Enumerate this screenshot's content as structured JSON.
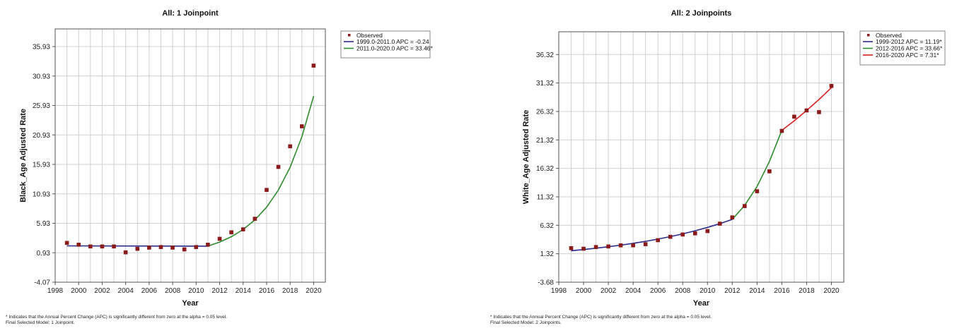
{
  "chart_data": [
    {
      "type": "line",
      "title": "All: 1 Joinpoint",
      "xlabel": "Year",
      "ylabel": "Black_Age Adjusted Rate",
      "xlim": [
        1998,
        2021
      ],
      "ylim": [
        -4.07,
        38.93
      ],
      "x_ticks": [
        1998,
        2000,
        2002,
        2004,
        2006,
        2008,
        2010,
        2012,
        2014,
        2016,
        2018,
        2020
      ],
      "y_ticks": [
        -4.07,
        0.93,
        5.93,
        10.93,
        15.93,
        20.93,
        25.93,
        30.93,
        35.93
      ],
      "y_tick_labels": [
        "-4.07",
        "0.93",
        "5.93",
        "10.93",
        "15.93",
        "20.93",
        "25.93",
        "30.93",
        "35.93"
      ],
      "grid": true,
      "legend_position": "right",
      "observed": {
        "name": "Observed",
        "color": "#8b1a1a",
        "x": [
          1999,
          2000,
          2001,
          2002,
          2003,
          2004,
          2005,
          2006,
          2007,
          2008,
          2009,
          2010,
          2011,
          2012,
          2013,
          2014,
          2015,
          2016,
          2017,
          2018,
          2019,
          2020
        ],
        "y": [
          2.6,
          2.3,
          2.0,
          2.0,
          2.0,
          1.0,
          1.6,
          1.8,
          1.9,
          1.8,
          1.5,
          1.9,
          2.3,
          3.3,
          4.4,
          4.9,
          6.7,
          11.6,
          15.5,
          19.0,
          22.4,
          32.7
        ]
      },
      "series": [
        {
          "name": "1999.0-2011.0 APC = -0.24",
          "color": "#2b2b8c",
          "x": [
            1999,
            2011
          ],
          "y": [
            2.1,
            2.05
          ]
        },
        {
          "name": "2011.0-2020.0 APC = 33.46*",
          "color": "#2e8b2e",
          "x": [
            2011,
            2012,
            2013,
            2014,
            2015,
            2016,
            2017,
            2018,
            2019,
            2020
          ],
          "y": [
            2.05,
            2.74,
            3.65,
            4.87,
            6.5,
            8.68,
            11.58,
            15.45,
            20.62,
            27.52
          ]
        }
      ],
      "footnote": [
        "* Indicates that the Annual Percent Change (APC) is significantly different from zero at the alpha = 0.05 level.",
        "Final Selected Model: 1 Joinpoint."
      ]
    },
    {
      "type": "line",
      "title": "All: 2 Joinpoints",
      "xlabel": "Year",
      "ylabel": "White_Age Adjusted Rate",
      "xlim": [
        1998,
        2021
      ],
      "ylim": [
        -3.68,
        40.32
      ],
      "x_ticks": [
        1998,
        2000,
        2002,
        2004,
        2006,
        2008,
        2010,
        2012,
        2014,
        2016,
        2018,
        2020
      ],
      "y_ticks": [
        -3.68,
        1.32,
        6.32,
        11.32,
        16.32,
        21.32,
        26.32,
        31.32,
        36.32
      ],
      "y_tick_labels": [
        "-3.68",
        "1.32",
        "6.32",
        "11.32",
        "16.32",
        "21.32",
        "26.32",
        "31.32",
        "36.32"
      ],
      "grid": true,
      "legend_position": "right",
      "observed": {
        "name": "Observed",
        "color": "#8b1a1a",
        "x": [
          1999,
          2000,
          2001,
          2002,
          2003,
          2004,
          2005,
          2006,
          2007,
          2008,
          2009,
          2010,
          2011,
          2012,
          2013,
          2014,
          2015,
          2016,
          2017,
          2018,
          2019,
          2020
        ],
        "y": [
          2.3,
          2.2,
          2.5,
          2.6,
          2.8,
          2.8,
          3.0,
          3.7,
          4.3,
          4.7,
          4.9,
          5.3,
          6.6,
          7.7,
          9.7,
          12.3,
          15.8,
          22.9,
          25.4,
          26.5,
          26.2,
          30.8
        ]
      },
      "series": [
        {
          "name": "1999-2012 APC = 11.19*",
          "color": "#2b2b8c",
          "x": [
            1999,
            2000,
            2001,
            2002,
            2003,
            2004,
            2005,
            2006,
            2007,
            2008,
            2009,
            2010,
            2011,
            2012
          ],
          "y": [
            1.85,
            2.06,
            2.29,
            2.55,
            2.83,
            3.15,
            3.5,
            3.89,
            4.33,
            4.81,
            5.35,
            5.95,
            6.61,
            7.35
          ]
        },
        {
          "name": "2012-2016 APC = 33.66*",
          "color": "#2e8b2e",
          "x": [
            2012,
            2013,
            2014,
            2015,
            2016
          ],
          "y": [
            7.35,
            9.82,
            13.13,
            17.55,
            23.0
          ]
        },
        {
          "name": "2016-2020 APC = 7.31*",
          "color": "#d62020",
          "x": [
            2016,
            2017,
            2018,
            2019,
            2020
          ],
          "y": [
            23.0,
            24.68,
            26.49,
            28.42,
            30.5
          ]
        }
      ],
      "footnote": [
        "* Indicates that the Annual Percent Change (APC) is significantly different from zero at the alpha = 0.05 level.",
        "Final Selected Model: 2 Joinpoints."
      ]
    }
  ]
}
